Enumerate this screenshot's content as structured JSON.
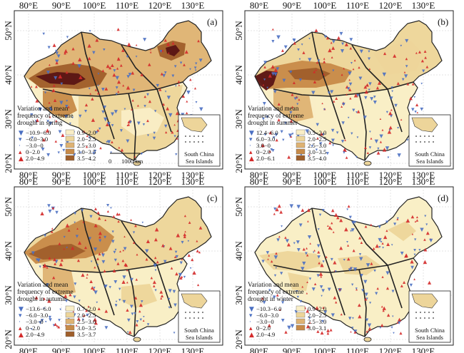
{
  "colors": {
    "low": "#f9eec6",
    "mid": "#edd59a",
    "midhigh": "#deb273",
    "high": "#c78a48",
    "veryhigh": "#9f5e2a",
    "extreme": "#5a1414",
    "decrease_marker": "#4a6fc2",
    "increase_marker": "#d42a2a",
    "boundary": "#222222"
  },
  "panels": [
    {
      "id": "(a)",
      "legend_title": [
        "Variation and mean",
        "frequency of extreme",
        "drought in spring"
      ],
      "trend_items": [
        {
          "symbol": "▼",
          "label": "−10.9−6.0"
        },
        {
          "symbol": "▾",
          "label": "−6.0−3.0"
        },
        {
          "symbol": "·",
          "label": "−3.0−0"
        },
        {
          "symbol": "▴",
          "label": "0−2.0"
        },
        {
          "symbol": "▲",
          "label": "2.0−4.9"
        }
      ],
      "class_items": [
        {
          "color_key": "low",
          "label": "0.9−2.0"
        },
        {
          "color_key": "mid",
          "label": "2.0−2.5"
        },
        {
          "color_key": "midhigh",
          "label": "2.5−3.0"
        },
        {
          "color_key": "high",
          "label": "3.0−3.5"
        },
        {
          "color_key": "veryhigh",
          "label": "3.5−4.2"
        }
      ],
      "scale_bar": {
        "left": "0",
        "right": "1000 km"
      }
    },
    {
      "id": "(b)",
      "legend_title": [
        "Variation and mean",
        "frequency of extreme",
        "drought in summer"
      ],
      "trend_items": [
        {
          "symbol": "▼",
          "label": "12.4−6.0"
        },
        {
          "symbol": "▾",
          "label": "6.0−3.0"
        },
        {
          "symbol": "·",
          "label": "3.0−0"
        },
        {
          "symbol": "▴",
          "label": "0−2.0"
        },
        {
          "symbol": "▲",
          "label": "2.0−6.1"
        }
      ],
      "class_items": [
        {
          "color_key": "low",
          "label": "0.5−2.0"
        },
        {
          "color_key": "mid",
          "label": "2.0−2.5"
        },
        {
          "color_key": "midhigh",
          "label": "2.5−3.0"
        },
        {
          "color_key": "high",
          "label": "3.0−3.5"
        },
        {
          "color_key": "veryhigh",
          "label": "3.5−4.0"
        }
      ]
    },
    {
      "id": "(c)",
      "legend_title": [
        "Variation and mean",
        "frequency of extreme",
        "drought in autumn"
      ],
      "trend_items": [
        {
          "symbol": "▼",
          "label": "−13.6−6.0"
        },
        {
          "symbol": "▾",
          "label": "−6.0−3.0"
        },
        {
          "symbol": "·",
          "label": "−3.0−0"
        },
        {
          "symbol": "▴",
          "label": "0−2.0"
        },
        {
          "symbol": "▲",
          "label": "2.0−4.9"
        }
      ],
      "class_items": [
        {
          "color_key": "low",
          "label": "0.7−2.0"
        },
        {
          "color_key": "mid",
          "label": "2.0−2.5"
        },
        {
          "color_key": "midhigh",
          "label": "2.5−3.0"
        },
        {
          "color_key": "high",
          "label": "3.0−3.5"
        },
        {
          "color_key": "veryhigh",
          "label": "3.5−3.7"
        }
      ]
    },
    {
      "id": "(d)",
      "legend_title": [
        "Variation and mean",
        "frequency of extreme",
        "drought in winter"
      ],
      "trend_items": [
        {
          "symbol": "▼",
          "label": "−10.3−6.0"
        },
        {
          "symbol": "▾",
          "label": "−6.0−3.0"
        },
        {
          "symbol": "·",
          "label": "−3.0−0"
        },
        {
          "symbol": "▴",
          "label": "0−2.0"
        },
        {
          "symbol": "▲",
          "label": "2.0−4.9"
        }
      ],
      "class_items": [
        {
          "color_key": "low",
          "label": "0.9−2.0"
        },
        {
          "color_key": "mid",
          "label": "2.0−2.5"
        },
        {
          "color_key": "midhigh",
          "label": "2.5−3.0"
        },
        {
          "color_key": "high",
          "label": "3.0−3.1"
        }
      ]
    }
  ],
  "axes": {
    "top_ticks": [
      "80°E",
      "90°E",
      "100°E",
      "110°E",
      "120°E",
      "130°E"
    ],
    "bottom_ticks": [
      "80°E",
      "90°E",
      "100°E",
      "110°E",
      "120°E",
      "130°E"
    ],
    "left_ticks": [
      "50°N",
      "40°N",
      "30°N",
      "20°N"
    ]
  },
  "inset_caption": [
    "South China",
    "Sea Islands"
  ]
}
